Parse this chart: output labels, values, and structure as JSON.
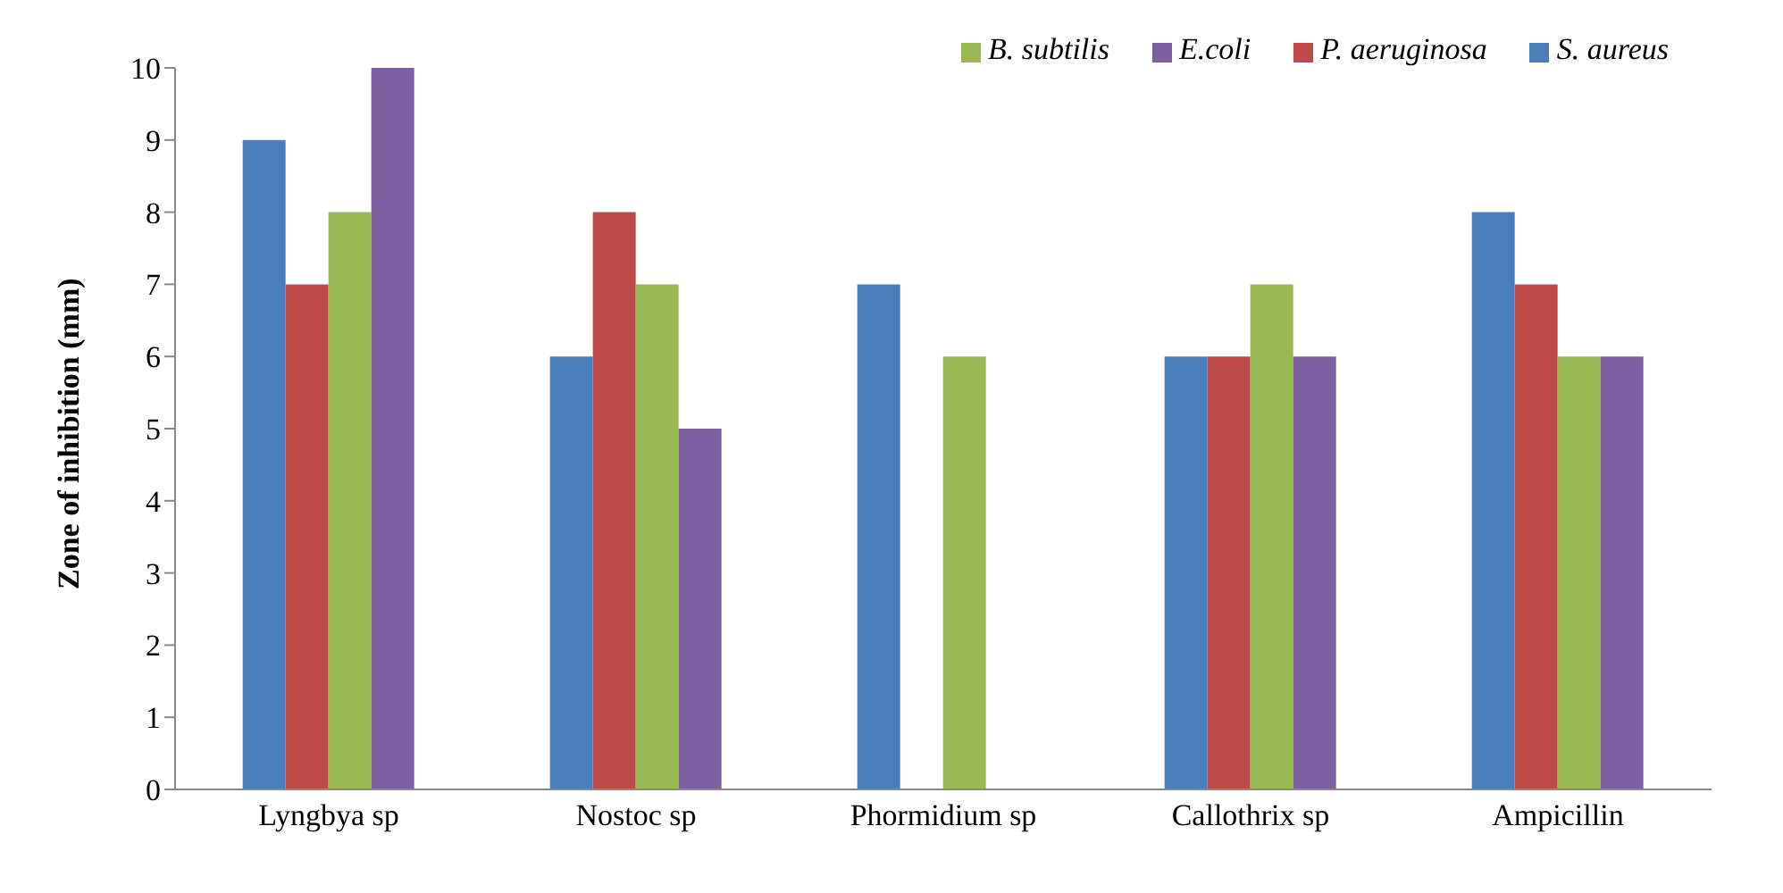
{
  "chart_data": {
    "type": "bar",
    "ylabel": "Zone of inhibition (mm)",
    "categories": [
      "Lyngbya sp",
      "Nostoc sp",
      "Phormidium sp",
      "Callothrix sp",
      "Ampicillin"
    ],
    "series": [
      {
        "name": "S. aureus",
        "color": "#4a7ebb",
        "values": [
          9,
          6,
          7,
          6,
          8
        ]
      },
      {
        "name": "P. aeruginosa",
        "color": "#be4b48",
        "values": [
          7,
          8,
          0,
          6,
          7
        ]
      },
      {
        "name": "B. subtilis",
        "color": "#98b954",
        "values": [
          8,
          7,
          6,
          7,
          6
        ]
      },
      {
        "name": "E.coli",
        "color": "#7d60a0",
        "values": [
          10,
          5,
          0,
          6,
          6
        ]
      }
    ],
    "ylim": [
      0,
      10
    ],
    "yticks": [
      0,
      1,
      2,
      3,
      4,
      5,
      6,
      7,
      8,
      9,
      10
    ],
    "grid": false,
    "legend": "top right"
  }
}
